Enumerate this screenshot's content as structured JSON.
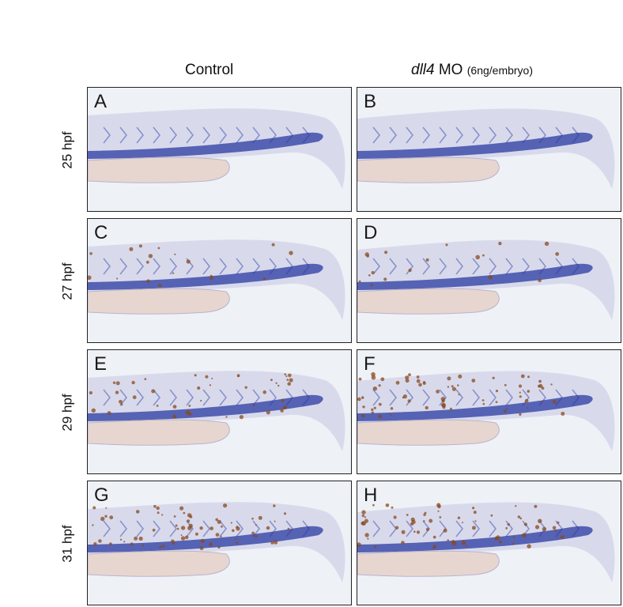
{
  "columns": {
    "control": "Control",
    "mo_gene": "dll4",
    "mo_suffix": "MO",
    "mo_dose": "(6ng/embryo)"
  },
  "rows": [
    "25 hpf",
    "27 hpf",
    "29 hpf",
    "31 hpf"
  ],
  "panels": [
    "A",
    "B",
    "C",
    "D",
    "E",
    "F",
    "G",
    "H"
  ],
  "colors": {
    "background": "#eef1f6",
    "tissue": "#d4d6ea",
    "stain": "#2b3aa0",
    "yolk": "#e7d6cf",
    "pigment": "#8a4a1e"
  }
}
